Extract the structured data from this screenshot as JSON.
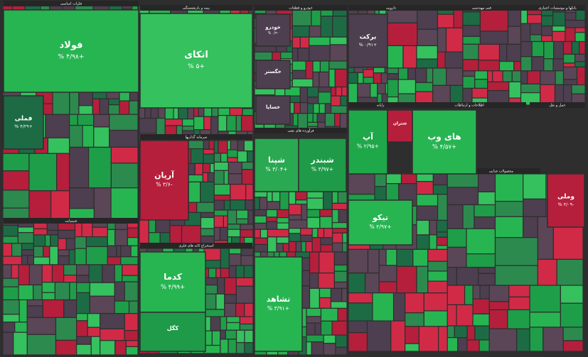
{
  "sectors": [
    {
      "name": "فلزات اساسی"
    },
    {
      "name": "بیمه و بازنشستگی"
    },
    {
      "name": "خودرو و قطعات"
    },
    {
      "name": "دارویی"
    },
    {
      "name": "فنی مهندسی"
    },
    {
      "name": "بانکها و موسسات اعتباری"
    },
    {
      "name": "سرمایه گذاریها"
    },
    {
      "name": "فرآورده های نفتی"
    },
    {
      "name": "رایانه"
    },
    {
      "name": "اطلاعات و ارتباطات"
    },
    {
      "name": "شیمیایی"
    },
    {
      "name": "استخراج کانه های فلزی"
    },
    {
      "name": "محصولات غذایی"
    },
    {
      "name": "حمل و نقل"
    }
  ],
  "tiles": [
    {
      "name": "فولاد",
      "change": "+۴/۹۸ %"
    },
    {
      "name": "اتکای",
      "change": "+۵ %"
    },
    {
      "name": "آریان",
      "change": "-۳/۶ %"
    },
    {
      "name": "شپنا",
      "change": "+۳/۰۴ %"
    },
    {
      "name": "شبندر",
      "change": "+۳/۹۷ %"
    },
    {
      "name": "کدما",
      "change": "+۴/۹۹ %"
    },
    {
      "name": "کگل",
      "change": ""
    },
    {
      "name": "های وب",
      "change": "+۴/۵۷ %"
    },
    {
      "name": "آپ",
      "change": "+۲/۹۵ %"
    },
    {
      "name": "تیکو",
      "change": "+۲/۹۷ %"
    },
    {
      "name": "تشاهد",
      "change": "+۳/۹۱ %"
    },
    {
      "name": "فملی",
      "change": "+۴/۲۹ %"
    },
    {
      "name": "وملی",
      "change": "-۴/۰۹ %"
    },
    {
      "name": "برکت",
      "change": "+۰/۹۱ %"
    },
    {
      "name": "خودرو",
      "change": "-۰/۳ %"
    },
    {
      "name": "خگستر",
      "change": ""
    },
    {
      "name": "خساپا",
      "change": ""
    },
    {
      "name": "شتران",
      "change": ""
    }
  ]
}
